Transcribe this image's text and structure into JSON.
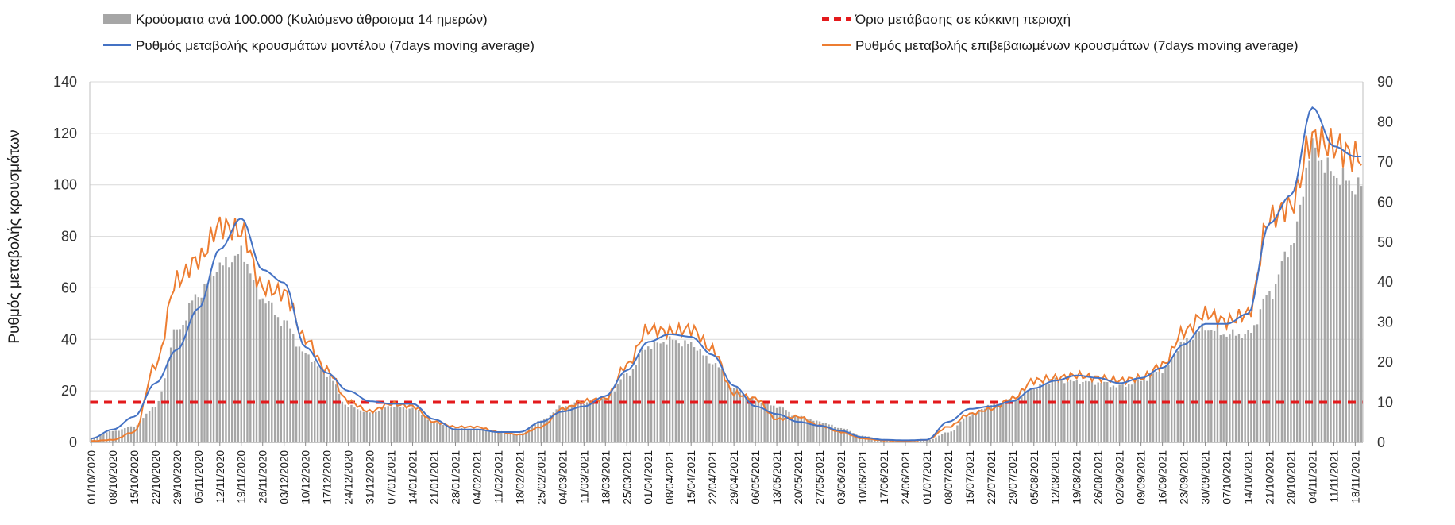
{
  "chart_data": {
    "type": "bar+line",
    "legend": {
      "bars": "Κρούσματα ανά 100.000 (Κυλιόμενο άθροισμα 14 ημερών)",
      "threshold": "Όριο μετάβασης σε κόκκινη περιοχή",
      "model": "Ρυθμός μεταβολής κρουσμάτων μοντέλου (7days moving average)",
      "confirmed": "Ρυθμός μεταβολής επιβεβαιωμένων κρουσμάτων (7days moving average)"
    },
    "ylabel_left": "Ρυθμός μεταβολής κρουσμάτων",
    "left_axis": {
      "min": 0,
      "max": 140,
      "ticks": [
        "0",
        "20",
        "40",
        "60",
        "80",
        "100",
        "120",
        "140"
      ]
    },
    "right_axis": {
      "min": 0,
      "max": 90,
      "ticks": [
        "0",
        "10",
        "20",
        "30",
        "40",
        "50",
        "60",
        "70",
        "80",
        "90"
      ]
    },
    "x_ticks": [
      "01/10/2020",
      "08/10/2020",
      "15/10/2020",
      "22/10/2020",
      "29/10/2020",
      "05/11/2020",
      "12/11/2020",
      "19/11/2020",
      "26/11/2020",
      "03/12/2020",
      "10/12/2020",
      "17/12/2020",
      "24/12/2020",
      "31/12/2020",
      "07/01/2021",
      "14/01/2021",
      "21/01/2021",
      "28/01/2021",
      "04/02/2021",
      "11/02/2021",
      "18/02/2021",
      "25/02/2021",
      "04/03/2021",
      "11/03/2021",
      "18/03/2021",
      "25/03/2021",
      "01/04/2021",
      "08/04/2021",
      "15/04/2021",
      "22/04/2021",
      "29/04/2021",
      "06/05/2021",
      "13/05/2021",
      "20/05/2021",
      "27/05/2021",
      "03/06/2021",
      "10/06/2021",
      "17/06/2021",
      "24/06/2021",
      "01/07/2021",
      "08/07/2021",
      "15/07/2021",
      "22/07/2021",
      "29/07/2021",
      "05/08/2021",
      "12/08/2021",
      "19/08/2021",
      "26/08/2021",
      "02/09/2021",
      "09/09/2021",
      "16/09/2021",
      "23/09/2021",
      "30/09/2021",
      "07/10/2021",
      "14/10/2021",
      "21/10/2021",
      "28/10/2021",
      "04/11/2021",
      "11/11/2021",
      "18/11/2021"
    ],
    "threshold_value": 10,
    "bars_weekly_right_axis": [
      1.2,
      2.8,
      4,
      9,
      28,
      37,
      44,
      47,
      36,
      30,
      22,
      17,
      9,
      7.5,
      9,
      8.5,
      5,
      3.6,
      3.1,
      2.5,
      2.1,
      5.5,
      9,
      10,
      11,
      17,
      24,
      25.5,
      24.5,
      20,
      13.5,
      10.5,
      9,
      6.5,
      5.2,
      3.6,
      1.6,
      0.8,
      0.5,
      0.5,
      2.5,
      6.8,
      9.3,
      10.5,
      13.5,
      15.5,
      15.2,
      15,
      14,
      15.5,
      18,
      25,
      28.5,
      27,
      27,
      37,
      49,
      73,
      67,
      64
    ],
    "model_weekly_left_axis": [
      1.5,
      5,
      10,
      23,
      36,
      52,
      75,
      87,
      67,
      62,
      37,
      27,
      20,
      16,
      15,
      15,
      9,
      5,
      5,
      4,
      4,
      8,
      12,
      14,
      18,
      28,
      39,
      42,
      41,
      34,
      22,
      14,
      11,
      8,
      6.5,
      4.5,
      2,
      1,
      0.8,
      1,
      8,
      13,
      14,
      16,
      21,
      24,
      26,
      25,
      23,
      25,
      29,
      38,
      46,
      46,
      50,
      85,
      96,
      130,
      115,
      111
    ],
    "confirmed_weekly_left_axis": [
      0.5,
      1,
      4,
      30,
      63,
      71,
      84,
      82,
      60,
      58,
      40,
      28,
      16,
      12,
      15,
      14,
      8,
      6,
      6,
      4,
      3,
      6,
      13,
      16,
      17,
      30,
      44,
      43,
      44,
      36,
      19,
      17,
      9,
      10,
      6.5,
      4,
      1.5,
      0.8,
      0.5,
      1,
      6,
      11,
      13,
      17,
      24,
      25,
      26,
      25,
      24,
      25,
      30,
      43,
      50,
      47,
      50,
      87,
      92,
      118,
      115,
      111
    ]
  }
}
